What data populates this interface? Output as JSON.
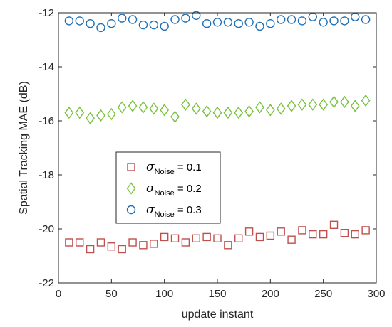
{
  "chart_data": {
    "type": "scatter",
    "xlabel": "update instant",
    "ylabel": "Spatial Tracking MAE (dB)",
    "xlim": [
      0,
      300
    ],
    "ylim": [
      -22,
      -12
    ],
    "xticks": [
      0,
      50,
      100,
      150,
      200,
      250,
      300
    ],
    "yticks": [
      -22,
      -20,
      -18,
      -16,
      -14,
      -12
    ],
    "legend_position": "center-left",
    "series": [
      {
        "name": "σNoise = 0.1",
        "legend": {
          "symbol": "σ",
          "subscript": "Noise",
          "suffix": " = 0.1"
        },
        "marker": "square",
        "color": "#C0504D",
        "x": [
          10,
          20,
          30,
          40,
          50,
          60,
          70,
          80,
          90,
          100,
          110,
          120,
          130,
          140,
          150,
          160,
          170,
          180,
          190,
          200,
          210,
          220,
          230,
          240,
          250,
          260,
          270,
          280,
          290
        ],
        "y": [
          -20.5,
          -20.5,
          -20.75,
          -20.5,
          -20.65,
          -20.75,
          -20.5,
          -20.6,
          -20.55,
          -20.3,
          -20.35,
          -20.5,
          -20.35,
          -20.3,
          -20.35,
          -20.6,
          -20.35,
          -20.1,
          -20.3,
          -20.25,
          -20.1,
          -20.4,
          -20.05,
          -20.2,
          -20.2,
          -19.85,
          -20.15,
          -20.2,
          -20.05
        ]
      },
      {
        "name": "σNoise = 0.2",
        "legend": {
          "symbol": "σ",
          "subscript": "Noise",
          "suffix": " = 0.2"
        },
        "marker": "diamond",
        "color": "#77C23A",
        "x": [
          10,
          20,
          30,
          40,
          50,
          60,
          70,
          80,
          90,
          100,
          110,
          120,
          130,
          140,
          150,
          160,
          170,
          180,
          190,
          200,
          210,
          220,
          230,
          240,
          250,
          260,
          270,
          280,
          290
        ],
        "y": [
          -15.7,
          -15.7,
          -15.9,
          -15.8,
          -15.75,
          -15.5,
          -15.45,
          -15.5,
          -15.55,
          -15.6,
          -15.85,
          -15.4,
          -15.55,
          -15.65,
          -15.7,
          -15.7,
          -15.7,
          -15.65,
          -15.5,
          -15.6,
          -15.55,
          -15.45,
          -15.4,
          -15.4,
          -15.4,
          -15.3,
          -15.3,
          -15.45,
          -15.25
        ]
      },
      {
        "name": "σNoise = 0.3",
        "legend": {
          "symbol": "σ",
          "subscript": "Noise",
          "suffix": " = 0.3"
        },
        "marker": "circle",
        "color": "#1F6FB4",
        "x": [
          10,
          20,
          30,
          40,
          50,
          60,
          70,
          80,
          90,
          100,
          110,
          120,
          130,
          140,
          150,
          160,
          170,
          180,
          190,
          200,
          210,
          220,
          230,
          240,
          250,
          260,
          270,
          280,
          290
        ],
        "y": [
          -12.3,
          -12.3,
          -12.4,
          -12.55,
          -12.4,
          -12.2,
          -12.25,
          -12.45,
          -12.45,
          -12.5,
          -12.25,
          -12.2,
          -12.1,
          -12.4,
          -12.35,
          -12.35,
          -12.4,
          -12.35,
          -12.5,
          -12.4,
          -12.25,
          -12.25,
          -12.3,
          -12.15,
          -12.35,
          -12.3,
          -12.3,
          -12.15,
          -12.25
        ]
      }
    ]
  }
}
